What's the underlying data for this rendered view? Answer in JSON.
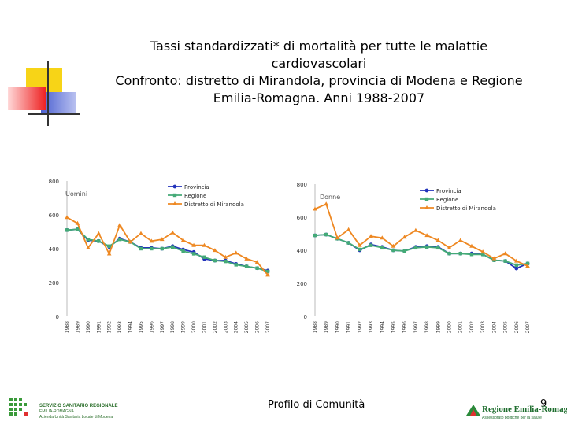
{
  "slide": {
    "title_lines": [
      "Tassi standardizzati* di mortalità per tutte le malattie",
      "cardiovascolari",
      "Confronto: distretto di Mirandola, provincia di Modena e Regione",
      "Emilia-Romagna. Anni 1988-2007"
    ],
    "footer_center": "Profilo di Comunità",
    "page_number": "9",
    "logo_left": {
      "line1": "SERVIZIO SANITARIO REGIONALE",
      "line2": "EMILIA-ROMAGNA",
      "line3": "Azienda Unità Sanitaria Locale di Modena"
    },
    "logo_right": {
      "name": "Regione Emilia-Romagna",
      "tagline": "Assessorato politiche per la salute"
    }
  },
  "colors": {
    "provincia": "#2233bb",
    "regione": "#44aa77",
    "distretto": "#ee8822",
    "deco_yellow": "#f7d417",
    "deco_blue": "#4a5fd0",
    "deco_red": "#ee2222"
  },
  "chart_data": [
    {
      "type": "line",
      "panel_label": "Uomini",
      "x": [
        "1988",
        "1989",
        "1990",
        "1991",
        "1992",
        "1993",
        "1994",
        "1995",
        "1996",
        "1997",
        "1998",
        "1999",
        "2000",
        "2001",
        "2002",
        "2003",
        "2004",
        "2005",
        "2006",
        "2007"
      ],
      "ylim": [
        0,
        800
      ],
      "yticks": [
        "0",
        "200",
        "400",
        "600",
        "800"
      ],
      "legend": [
        "Provincia",
        "Regione",
        "Distretto di Mirandola"
      ],
      "series": [
        {
          "name": "Provincia",
          "values": [
            510,
            515,
            450,
            445,
            410,
            460,
            440,
            405,
            405,
            400,
            415,
            395,
            380,
            340,
            330,
            330,
            310,
            295,
            285,
            270
          ]
        },
        {
          "name": "Regione",
          "values": [
            510,
            515,
            455,
            445,
            415,
            455,
            440,
            400,
            400,
            400,
            410,
            385,
            370,
            350,
            330,
            325,
            305,
            295,
            285,
            265
          ]
        },
        {
          "name": "Distretto di Mirandola",
          "values": [
            585,
            550,
            405,
            490,
            370,
            540,
            440,
            490,
            445,
            455,
            495,
            450,
            420,
            420,
            390,
            350,
            375,
            340,
            320,
            245
          ]
        }
      ]
    },
    {
      "type": "line",
      "panel_label": "Donne",
      "x": [
        "1988",
        "1989",
        "1990",
        "1991",
        "1992",
        "1993",
        "1994",
        "1995",
        "1996",
        "1997",
        "1998",
        "1999",
        "2000",
        "2001",
        "2002",
        "2003",
        "2004",
        "2005",
        "2006",
        "2007"
      ],
      "ylim": [
        0,
        800
      ],
      "yticks": [
        "0",
        "200",
        "400",
        "600",
        "800"
      ],
      "legend": [
        "Provincia",
        "Regione",
        "Distretto di Mirandola"
      ],
      "series": [
        {
          "name": "Provincia",
          "values": [
            490,
            495,
            470,
            445,
            400,
            435,
            420,
            400,
            395,
            420,
            425,
            420,
            380,
            380,
            380,
            375,
            340,
            335,
            290,
            320
          ]
        },
        {
          "name": "Regione",
          "values": [
            490,
            495,
            470,
            445,
            405,
            430,
            415,
            400,
            395,
            415,
            420,
            415,
            380,
            380,
            375,
            375,
            340,
            335,
            310,
            320
          ]
        },
        {
          "name": "Distretto di Mirandola",
          "values": [
            650,
            680,
            475,
            525,
            430,
            485,
            475,
            425,
            480,
            520,
            490,
            460,
            415,
            460,
            425,
            390,
            350,
            380,
            335,
            305
          ]
        }
      ]
    }
  ]
}
